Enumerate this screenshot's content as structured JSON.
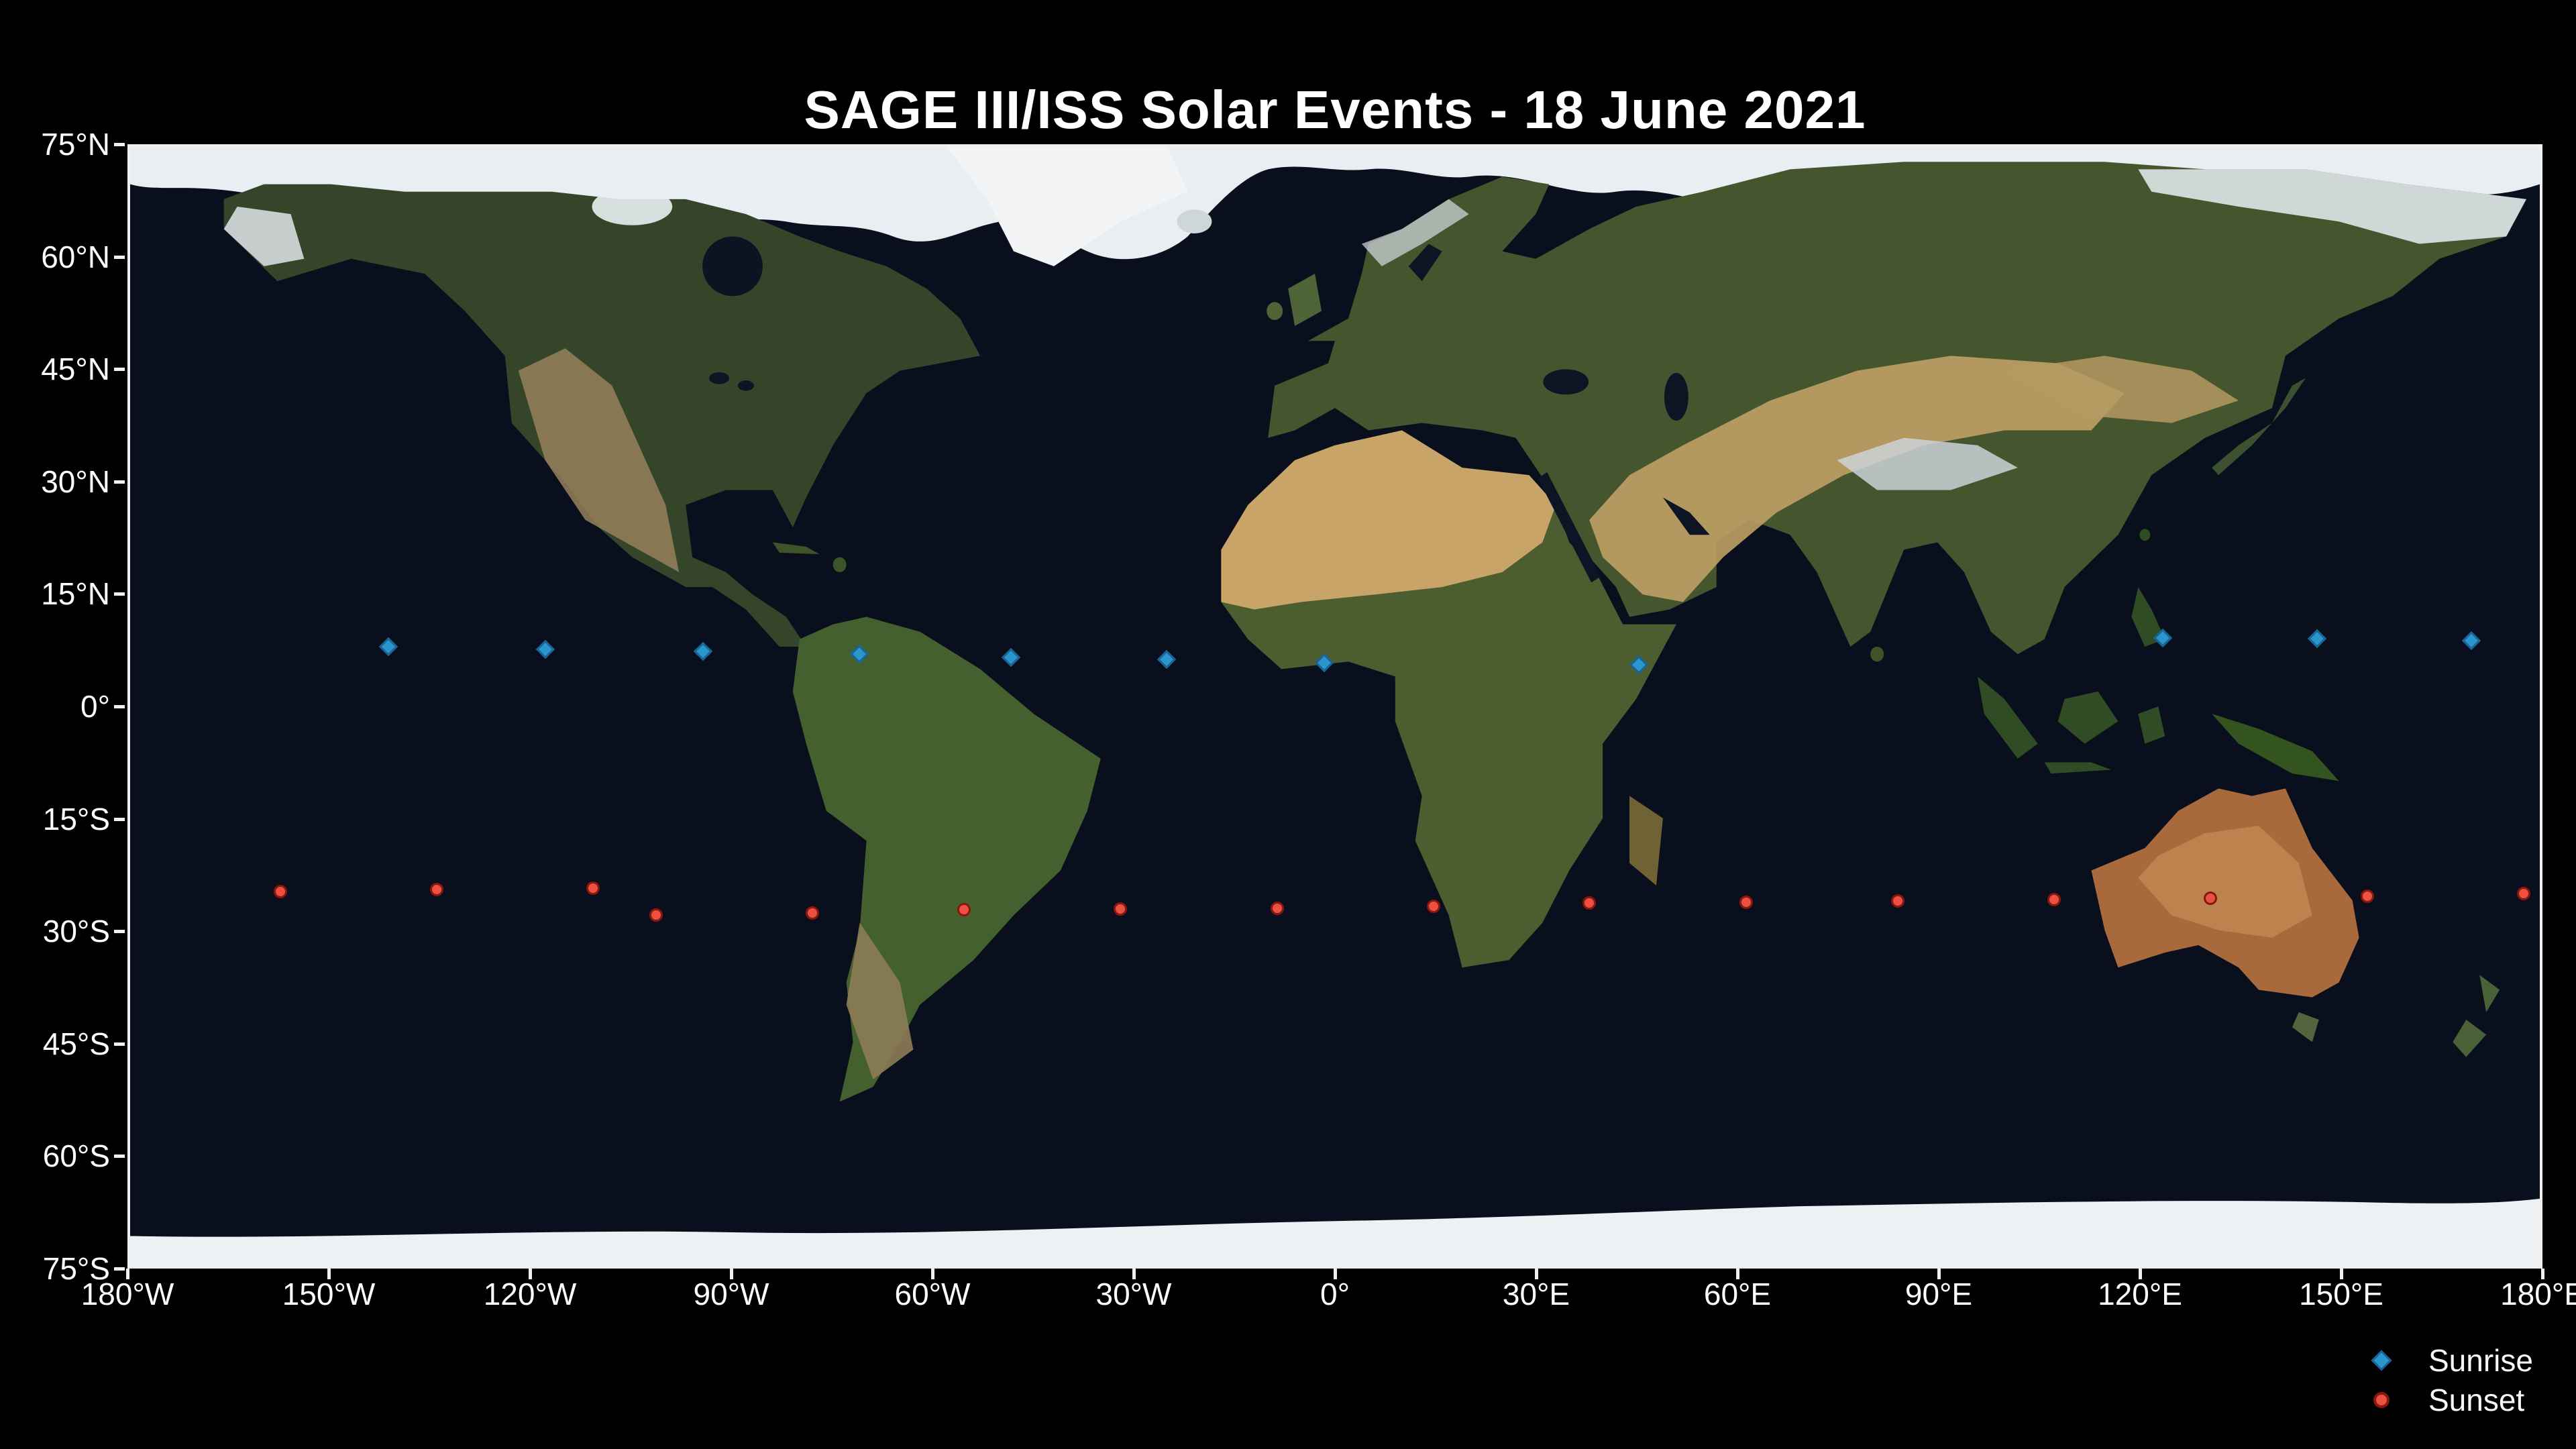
{
  "title": "SAGE III/ISS Solar Events - 18 June 2021",
  "legend": {
    "items": [
      {
        "label": "Sunrise",
        "marker": "diamond"
      },
      {
        "label": "Sunset",
        "marker": "circle"
      }
    ]
  },
  "axes": {
    "y_tick_labels": [
      "75°N",
      "60°N",
      "45°N",
      "30°N",
      "15°N",
      "0°",
      "15°S",
      "30°S",
      "45°S",
      "60°S",
      "75°S"
    ],
    "x_tick_labels": [
      "180°W",
      "150°W",
      "120°W",
      "90°W",
      "60°W",
      "30°W",
      "0°",
      "30°E",
      "60°E",
      "90°E",
      "120°E",
      "150°E",
      "180°E"
    ]
  },
  "colors": {
    "background": "#000000",
    "ocean": "#0a0f1d",
    "axis_border": "#f0f0f0",
    "text": "#ffffff",
    "sunrise_fill": "#2b96cd",
    "sunrise_edge": "#1a6397",
    "sunset_fill": "#ea5143",
    "sunset_edge": "#8a170e"
  },
  "chart_data": {
    "type": "scatter",
    "title": "SAGE III/ISS Solar Events - 18 June 2021",
    "xlabel": "",
    "ylabel": "",
    "xlim": [
      -180,
      180
    ],
    "ylim": [
      -75,
      75
    ],
    "x_tick_step_deg": 30,
    "y_tick_step_deg": 15,
    "grid": false,
    "background": "world satellite basemap (Blue Marble style)",
    "legend_position": "below plot, bottom right",
    "series": [
      {
        "name": "Sunrise",
        "marker": "diamond",
        "color": "#2b96cd",
        "edge_color": "#1a6397",
        "points": [
          {
            "lon": -141.5,
            "lat": 8.3
          },
          {
            "lon": -118.1,
            "lat": 8.0
          },
          {
            "lon": -94.6,
            "lat": 7.7
          },
          {
            "lon": -71.3,
            "lat": 7.3
          },
          {
            "lon": -48.7,
            "lat": 6.9
          },
          {
            "lon": -25.5,
            "lat": 6.6
          },
          {
            "lon": -2.0,
            "lat": 6.2
          },
          {
            "lon": 44.9,
            "lat": 5.9
          },
          {
            "lon": 123.0,
            "lat": 9.5
          },
          {
            "lon": 146.0,
            "lat": 9.4
          },
          {
            "lon": 169.0,
            "lat": 9.1
          }
        ]
      },
      {
        "name": "Sunset",
        "marker": "circle",
        "color": "#ea5143",
        "edge_color": "#8a170e",
        "points": [
          {
            "lon": -157.6,
            "lat": -24.3
          },
          {
            "lon": -134.3,
            "lat": -24.1
          },
          {
            "lon": -111.0,
            "lat": -23.9
          },
          {
            "lon": -101.6,
            "lat": -27.5
          },
          {
            "lon": -78.3,
            "lat": -27.2
          },
          {
            "lon": -55.7,
            "lat": -26.8
          },
          {
            "lon": -32.4,
            "lat": -26.7
          },
          {
            "lon": -9.0,
            "lat": -26.6
          },
          {
            "lon": 14.3,
            "lat": -26.3
          },
          {
            "lon": 37.5,
            "lat": -25.9
          },
          {
            "lon": 60.9,
            "lat": -25.8
          },
          {
            "lon": 83.5,
            "lat": -25.6
          },
          {
            "lon": 106.8,
            "lat": -25.4
          },
          {
            "lon": 130.1,
            "lat": -25.2
          },
          {
            "lon": 153.5,
            "lat": -25.0
          },
          {
            "lon": 176.8,
            "lat": -24.6
          }
        ]
      }
    ]
  }
}
